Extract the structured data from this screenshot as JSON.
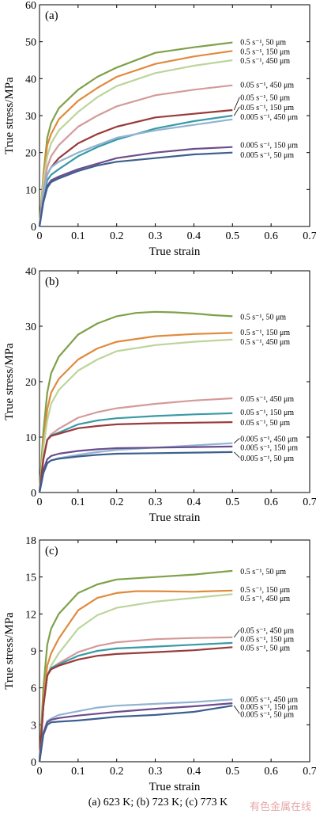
{
  "caption": "(a) 623 K; (b) 723 K; (c) 773 K",
  "watermark": "有色金属在线",
  "colors": {
    "s05_50": "#7fa14a",
    "s05_150": "#e08a3c",
    "s05_450": "#bcd59a",
    "s005_450": "#d49a9a",
    "s005_150": "#3a9aa6",
    "s005_50": "#9a3a3a",
    "s0005_450": "#93b3d2",
    "s0005_150": "#6b4d8c",
    "s0005_50": "#3d5f8e"
  },
  "chart_data": [
    {
      "type": "line",
      "panel_label": "(a)",
      "xlabel": "True strain",
      "ylabel": "True stress/MPa",
      "xlim": [
        0,
        0.7
      ],
      "ylim": [
        0,
        60
      ],
      "xticks": [
        "0",
        "0.1",
        "0.2",
        "0.3",
        "0.4",
        "0.5",
        "0.6",
        "0.7"
      ],
      "yticks": [
        "0",
        "10",
        "20",
        "30",
        "40",
        "50",
        "60"
      ],
      "grid": false,
      "series": [
        {
          "name": "0.5 s⁻¹, 50 μm",
          "color": "#7fa14a",
          "label_y": 50.0,
          "x": [
            0,
            0.01,
            0.02,
            0.03,
            0.05,
            0.1,
            0.15,
            0.2,
            0.3,
            0.4,
            0.5
          ],
          "y": [
            0,
            14,
            24,
            28,
            32,
            37,
            40.5,
            43,
            47,
            48.5,
            49.8
          ]
        },
        {
          "name": "0.5 s⁻¹, 150 μm",
          "color": "#e08a3c",
          "label_y": 47.5,
          "x": [
            0,
            0.01,
            0.02,
            0.03,
            0.05,
            0.1,
            0.15,
            0.2,
            0.3,
            0.4,
            0.5
          ],
          "y": [
            0,
            13,
            22,
            25,
            29,
            34,
            37.5,
            40.5,
            44,
            46,
            47.5
          ]
        },
        {
          "name": "0.5 s⁻¹, 450 μm",
          "color": "#bcd59a",
          "label_y": 45.0,
          "x": [
            0,
            0.01,
            0.02,
            0.03,
            0.05,
            0.1,
            0.15,
            0.2,
            0.3,
            0.4,
            0.5
          ],
          "y": [
            0,
            12,
            19,
            22.5,
            26,
            31,
            35,
            38,
            41.5,
            43.5,
            45
          ]
        },
        {
          "name": "0.05 s⁻¹, 450 μm",
          "color": "#d49a9a",
          "label_y": 38.5,
          "x": [
            0,
            0.01,
            0.02,
            0.03,
            0.05,
            0.1,
            0.15,
            0.2,
            0.3,
            0.4,
            0.5
          ],
          "y": [
            0,
            10,
            16,
            19,
            22,
            27,
            30,
            32.5,
            35.5,
            37,
            38.2
          ]
        },
        {
          "name": "0.05 s⁻¹, 50 μm",
          "color": "#9a3a3a",
          "label_y": 35.0,
          "x": [
            0,
            0.01,
            0.02,
            0.03,
            0.05,
            0.1,
            0.15,
            0.2,
            0.3,
            0.4,
            0.5
          ],
          "y": [
            0,
            9,
            14,
            16,
            18.5,
            22.5,
            25,
            27,
            29.5,
            30.5,
            31.5
          ]
        },
        {
          "name": "0.05 s⁻¹, 150 μm",
          "color": "#3a9aa6",
          "label_y": 32.4,
          "x": [
            0,
            0.01,
            0.02,
            0.03,
            0.05,
            0.1,
            0.15,
            0.2,
            0.3,
            0.4,
            0.5
          ],
          "y": [
            0,
            8,
            12.5,
            14,
            15.5,
            19,
            21.5,
            23.5,
            26.5,
            28.5,
            30
          ]
        },
        {
          "name": "0.005 s⁻¹, 450 μm",
          "color": "#93b3d2",
          "label_y": 29.8,
          "x": [
            0,
            0.01,
            0.02,
            0.03,
            0.05,
            0.1,
            0.15,
            0.2,
            0.3,
            0.4,
            0.5
          ],
          "y": [
            0,
            9,
            14,
            16,
            17.5,
            20,
            22,
            24,
            26,
            27.5,
            29
          ]
        },
        {
          "name": "0.005 s⁻¹, 150 μm",
          "color": "#6b4d8c",
          "label_y": 22.2,
          "x": [
            0,
            0.01,
            0.02,
            0.03,
            0.05,
            0.1,
            0.15,
            0.2,
            0.3,
            0.4,
            0.5
          ],
          "y": [
            0,
            7,
            11,
            12.5,
            13.5,
            15.5,
            17,
            18.5,
            20,
            21,
            21.5
          ]
        },
        {
          "name": "0.005 s⁻¹, 50 μm",
          "color": "#3d5f8e",
          "label_y": 19.5,
          "x": [
            0,
            0.01,
            0.02,
            0.03,
            0.05,
            0.1,
            0.15,
            0.2,
            0.3,
            0.4,
            0.5
          ],
          "y": [
            0,
            6.5,
            10.5,
            12,
            13,
            15,
            16.5,
            17.5,
            18.5,
            19.5,
            20
          ]
        }
      ]
    },
    {
      "type": "line",
      "panel_label": "(b)",
      "xlabel": "True strain",
      "ylabel": "True stress/MPa",
      "xlim": [
        0,
        0.7
      ],
      "ylim": [
        0,
        40
      ],
      "xticks": [
        "0",
        "0.1",
        "0.2",
        "0.3",
        "0.4",
        "0.5",
        "0.6",
        "0.7"
      ],
      "yticks": [
        "0",
        "10",
        "20",
        "30",
        "40"
      ],
      "grid": false,
      "series": [
        {
          "name": "0.5 s⁻¹, 50 μm",
          "color": "#7fa14a",
          "label_y": 31.8,
          "x": [
            0,
            0.01,
            0.02,
            0.03,
            0.05,
            0.1,
            0.15,
            0.2,
            0.25,
            0.3,
            0.35,
            0.4,
            0.45,
            0.5
          ],
          "y": [
            0,
            11,
            18,
            21.5,
            24.5,
            28.5,
            30.5,
            31.8,
            32.4,
            32.6,
            32.5,
            32.3,
            32.0,
            31.8
          ]
        },
        {
          "name": "0.5 s⁻¹, 150 μm",
          "color": "#e08a3c",
          "label_y": 29.0,
          "x": [
            0,
            0.01,
            0.02,
            0.03,
            0.05,
            0.1,
            0.15,
            0.2,
            0.3,
            0.4,
            0.5
          ],
          "y": [
            0,
            9,
            15,
            18,
            20.5,
            24,
            26,
            27.2,
            28.2,
            28.6,
            28.8
          ]
        },
        {
          "name": "0.5 s⁻¹, 450 μm",
          "color": "#bcd59a",
          "label_y": 27.3,
          "x": [
            0,
            0.01,
            0.02,
            0.03,
            0.05,
            0.1,
            0.15,
            0.2,
            0.3,
            0.4,
            0.5
          ],
          "y": [
            0,
            8,
            13,
            16,
            18.5,
            22,
            24,
            25.5,
            26.6,
            27.2,
            27.6
          ]
        },
        {
          "name": "0.05 s⁻¹, 450 μm",
          "color": "#d49a9a",
          "label_y": 17.0,
          "x": [
            0,
            0.01,
            0.02,
            0.03,
            0.05,
            0.1,
            0.15,
            0.2,
            0.3,
            0.4,
            0.5
          ],
          "y": [
            0,
            6,
            9.5,
            10.5,
            11.5,
            13.5,
            14.5,
            15.2,
            16.0,
            16.6,
            17.0
          ]
        },
        {
          "name": "0.05 s⁻¹, 150 μm",
          "color": "#3a9aa6",
          "label_y": 14.6,
          "x": [
            0,
            0.01,
            0.02,
            0.03,
            0.05,
            0.1,
            0.15,
            0.2,
            0.3,
            0.4,
            0.5
          ],
          "y": [
            0,
            6,
            9.5,
            10.3,
            10.8,
            12.3,
            13.0,
            13.4,
            13.8,
            14.1,
            14.3
          ]
        },
        {
          "name": "0.05 s⁻¹, 50 μm",
          "color": "#9a3a3a",
          "label_y": 12.7,
          "x": [
            0,
            0.01,
            0.02,
            0.03,
            0.05,
            0.1,
            0.15,
            0.2,
            0.3,
            0.4,
            0.5
          ],
          "y": [
            0,
            6,
            9.5,
            10.2,
            10.6,
            11.6,
            12.0,
            12.3,
            12.5,
            12.6,
            12.7
          ]
        },
        {
          "name": "0.005 s⁻¹, 450 μm",
          "color": "#93b3d2",
          "label_y": 9.8,
          "x": [
            0,
            0.01,
            0.02,
            0.03,
            0.05,
            0.1,
            0.15,
            0.2,
            0.3,
            0.4,
            0.5
          ],
          "y": [
            0,
            3.5,
            5.2,
            5.8,
            6.2,
            6.8,
            7.3,
            7.7,
            8.1,
            8.5,
            8.9
          ]
        },
        {
          "name": "0.005 s⁻¹, 150 μm",
          "color": "#6b4d8c",
          "label_y": 8.2,
          "x": [
            0,
            0.01,
            0.02,
            0.03,
            0.05,
            0.1,
            0.15,
            0.2,
            0.3,
            0.4,
            0.5
          ],
          "y": [
            0,
            4,
            6,
            6.6,
            7.0,
            7.5,
            7.8,
            8.0,
            8.1,
            8.2,
            8.3
          ]
        },
        {
          "name": "0.005 s⁻¹, 50 μm",
          "color": "#3d5f8e",
          "label_y": 6.3,
          "x": [
            0,
            0.01,
            0.02,
            0.03,
            0.05,
            0.1,
            0.15,
            0.2,
            0.3,
            0.4,
            0.5
          ],
          "y": [
            0,
            3.5,
            5.3,
            5.8,
            6.1,
            6.5,
            6.8,
            7.0,
            7.1,
            7.2,
            7.3
          ]
        }
      ]
    },
    {
      "type": "line",
      "panel_label": "(c)",
      "xlabel": "True strain",
      "ylabel": "True stress/MPa",
      "xlim": [
        0,
        0.7
      ],
      "ylim": [
        0,
        18
      ],
      "xticks": [
        "0",
        "0.1",
        "0.2",
        "0.3",
        "0.4",
        "0.5",
        "0.6",
        "0.7"
      ],
      "yticks": [
        "0",
        "3",
        "6",
        "9",
        "12",
        "15",
        "18"
      ],
      "grid": false,
      "series": [
        {
          "name": "0.5 s⁻¹, 50 μm",
          "color": "#7fa14a",
          "label_y": 15.5,
          "x": [
            0,
            0.01,
            0.02,
            0.03,
            0.05,
            0.1,
            0.15,
            0.2,
            0.3,
            0.4,
            0.5
          ],
          "y": [
            0,
            6,
            9.5,
            10.8,
            12.0,
            13.7,
            14.4,
            14.8,
            15.0,
            15.2,
            15.5
          ]
        },
        {
          "name": "0.5 s⁻¹, 150 μm",
          "color": "#e08a3c",
          "label_y": 14.0,
          "x": [
            0,
            0.01,
            0.02,
            0.03,
            0.05,
            0.1,
            0.15,
            0.2,
            0.25,
            0.3,
            0.4,
            0.5
          ],
          "y": [
            0,
            5,
            7.8,
            8.8,
            10.0,
            12.3,
            13.3,
            13.7,
            13.85,
            13.85,
            13.8,
            13.9
          ]
        },
        {
          "name": "0.5 s⁻¹, 450 μm",
          "color": "#bcd59a",
          "label_y": 13.3,
          "x": [
            0,
            0.01,
            0.02,
            0.03,
            0.05,
            0.1,
            0.15,
            0.2,
            0.3,
            0.4,
            0.5
          ],
          "y": [
            0,
            4.5,
            7.0,
            7.8,
            8.8,
            10.8,
            11.9,
            12.5,
            13.0,
            13.3,
            13.6
          ]
        },
        {
          "name": "0.05 s⁻¹, 450 μm",
          "color": "#d49a9a",
          "label_y": 10.7,
          "x": [
            0,
            0.01,
            0.02,
            0.03,
            0.05,
            0.1,
            0.15,
            0.2,
            0.3,
            0.4,
            0.5
          ],
          "y": [
            0,
            4.5,
            7.0,
            7.6,
            8.0,
            8.9,
            9.4,
            9.7,
            9.95,
            10.05,
            10.1
          ]
        },
        {
          "name": "0.05 s⁻¹, 150 μm",
          "color": "#3a9aa6",
          "label_y": 10.0,
          "x": [
            0,
            0.01,
            0.02,
            0.03,
            0.05,
            0.1,
            0.15,
            0.2,
            0.3,
            0.4,
            0.5
          ],
          "y": [
            0,
            4.5,
            7.0,
            7.6,
            7.9,
            8.6,
            9.0,
            9.2,
            9.35,
            9.5,
            9.65
          ]
        },
        {
          "name": "0.05 s⁻¹, 50 μm",
          "color": "#9a3a3a",
          "label_y": 9.3,
          "x": [
            0,
            0.01,
            0.02,
            0.03,
            0.05,
            0.1,
            0.15,
            0.2,
            0.3,
            0.4,
            0.5
          ],
          "y": [
            0,
            4.5,
            7.0,
            7.5,
            7.8,
            8.3,
            8.6,
            8.75,
            8.9,
            9.05,
            9.3
          ]
        },
        {
          "name": "0.005 s⁻¹, 450 μm",
          "color": "#93b3d2",
          "label_y": 5.1,
          "x": [
            0,
            0.01,
            0.02,
            0.03,
            0.05,
            0.1,
            0.15,
            0.2,
            0.3,
            0.4,
            0.5
          ],
          "y": [
            0,
            2.4,
            3.3,
            3.5,
            3.8,
            4.1,
            4.4,
            4.55,
            4.7,
            4.85,
            5.05
          ]
        },
        {
          "name": "0.005 s⁻¹, 150 μm",
          "color": "#6b4d8c",
          "label_y": 4.5,
          "x": [
            0,
            0.01,
            0.02,
            0.03,
            0.05,
            0.1,
            0.15,
            0.2,
            0.3,
            0.4,
            0.5
          ],
          "y": [
            0,
            2.3,
            3.2,
            3.4,
            3.55,
            3.75,
            3.9,
            4.05,
            4.3,
            4.5,
            4.75
          ]
        },
        {
          "name": "0.005 s⁻¹, 50 μm",
          "color": "#3d5f8e",
          "label_y": 3.9,
          "x": [
            0,
            0.01,
            0.02,
            0.03,
            0.05,
            0.1,
            0.15,
            0.2,
            0.3,
            0.4,
            0.5
          ],
          "y": [
            0,
            2.2,
            3.0,
            3.2,
            3.25,
            3.35,
            3.5,
            3.65,
            3.8,
            4.05,
            4.55
          ]
        }
      ]
    }
  ]
}
